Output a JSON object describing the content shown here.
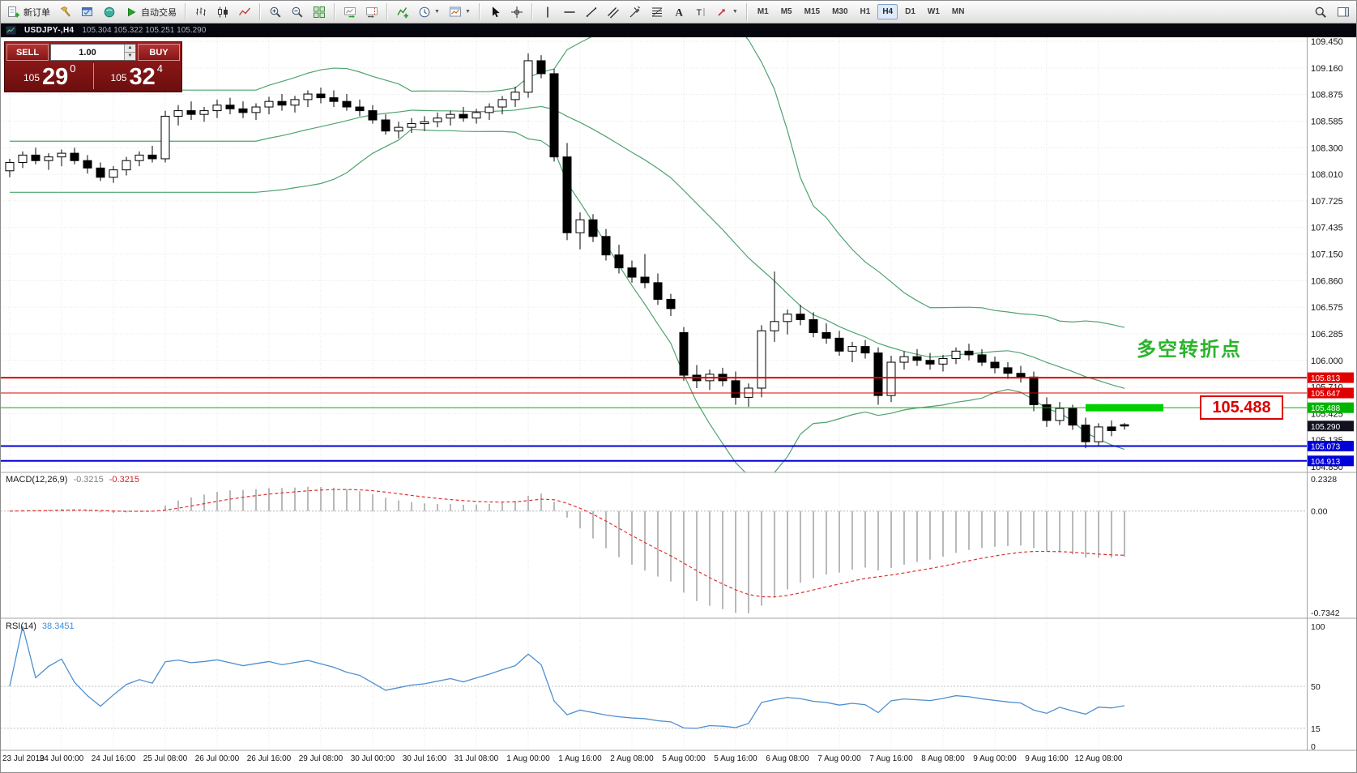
{
  "colors": {
    "up_candle": "#ffffff",
    "down_candle": "#000000",
    "candle_border": "#000000",
    "bollinger": "#4fa36f",
    "macd_histogram": "#b9b9b9",
    "macd_signal": "#e03030",
    "rsi_line": "#4f8fd0",
    "highlight_green": "#00cf00",
    "grid": "#e7e7e7"
  },
  "toolbar": {
    "groups": [
      {
        "items": [
          {
            "name": "new-order-button",
            "icon": "new-order",
            "label": "新订单"
          },
          {
            "name": "tools-button",
            "icon": "hammer"
          },
          {
            "name": "metaeditor-button",
            "icon": "editor"
          },
          {
            "name": "navigator-button",
            "icon": "orb"
          },
          {
            "name": "autotrading-button",
            "icon": "play",
            "label": "自动交易"
          }
        ]
      },
      {
        "items": [
          {
            "name": "bar-chart-mode-button",
            "icon": "bars"
          },
          {
            "name": "candle-chart-mode-button",
            "icon": "candles"
          },
          {
            "name": "line-chart-mode-button",
            "icon": "linechart"
          }
        ]
      },
      {
        "items": [
          {
            "name": "zoom-in-button",
            "icon": "zoom-in"
          },
          {
            "name": "zoom-out-button",
            "icon": "zoom-out"
          },
          {
            "name": "tile-windows-button",
            "icon": "tile"
          }
        ]
      },
      {
        "items": [
          {
            "name": "auto-scroll-button",
            "icon": "autoscroll"
          },
          {
            "name": "chart-shift-button",
            "icon": "shift"
          }
        ]
      },
      {
        "items": [
          {
            "name": "indicators-button",
            "icon": "indicators"
          },
          {
            "name": "periods-button",
            "icon": "clock",
            "caret": true
          },
          {
            "name": "templates-button",
            "icon": "template",
            "caret": true
          }
        ]
      },
      {
        "items": [
          {
            "name": "cursor-button",
            "icon": "cursor"
          },
          {
            "name": "crosshair-button",
            "icon": "crosshair"
          }
        ]
      },
      {
        "items": [
          {
            "name": "vertical-line-button",
            "icon": "vline"
          },
          {
            "name": "horizontal-line-button",
            "icon": "hline"
          },
          {
            "name": "trendline-button",
            "icon": "trendline"
          },
          {
            "name": "channel-button",
            "icon": "channel"
          },
          {
            "name": "pitchfork-button",
            "icon": "pitchfork"
          },
          {
            "name": "fibonacci-button",
            "icon": "fibonacci"
          },
          {
            "name": "text-tool-button",
            "icon": "text-tool"
          },
          {
            "name": "label-tool-button",
            "icon": "label-tool"
          },
          {
            "name": "arrows-tool-button",
            "icon": "arrows-tool",
            "caret": true
          }
        ]
      }
    ],
    "timeframes": {
      "items": [
        "M1",
        "M5",
        "M15",
        "M30",
        "H1",
        "H4",
        "D1",
        "W1",
        "MN"
      ],
      "active": "H4"
    },
    "right_icons": [
      {
        "name": "symbol-search-button",
        "icon": "search"
      },
      {
        "name": "chart-panels-button",
        "icon": "panels"
      }
    ]
  },
  "symbol_bar": {
    "symbol": "USDJPY-,H4",
    "ohlc": "105.304 105.322 105.251 105.290"
  },
  "trade_panel": {
    "sell_label": "SELL",
    "buy_label": "BUY",
    "volume": "1.00",
    "sell_price_small": "105",
    "sell_price_big": "29",
    "sell_price_sup": "0",
    "buy_price_small": "105",
    "buy_price_big": "32",
    "buy_price_sup": "4"
  },
  "chart_data": {
    "type": "candlestick",
    "symbol": "USDJPY",
    "timeframe": "H4",
    "ohlc": [
      [
        108.05,
        108.18,
        107.98,
        108.14
      ],
      [
        108.14,
        108.26,
        108.08,
        108.22
      ],
      [
        108.22,
        108.3,
        108.12,
        108.16
      ],
      [
        108.16,
        108.24,
        108.06,
        108.2
      ],
      [
        108.2,
        108.28,
        108.1,
        108.24
      ],
      [
        108.24,
        108.3,
        108.12,
        108.16
      ],
      [
        108.16,
        108.22,
        108.02,
        108.08
      ],
      [
        108.08,
        108.14,
        107.94,
        107.98
      ],
      [
        107.98,
        108.1,
        107.92,
        108.06
      ],
      [
        108.06,
        108.2,
        108.0,
        108.16
      ],
      [
        108.16,
        108.26,
        108.1,
        108.22
      ],
      [
        108.22,
        108.32,
        108.14,
        108.18
      ],
      [
        108.18,
        108.7,
        108.14,
        108.64
      ],
      [
        108.64,
        108.76,
        108.54,
        108.7
      ],
      [
        108.7,
        108.8,
        108.6,
        108.66
      ],
      [
        108.66,
        108.74,
        108.58,
        108.7
      ],
      [
        108.7,
        108.82,
        108.62,
        108.76
      ],
      [
        108.76,
        108.84,
        108.66,
        108.72
      ],
      [
        108.72,
        108.8,
        108.62,
        108.68
      ],
      [
        108.68,
        108.78,
        108.6,
        108.74
      ],
      [
        108.74,
        108.85,
        108.66,
        108.8
      ],
      [
        108.8,
        108.88,
        108.7,
        108.76
      ],
      [
        108.76,
        108.86,
        108.68,
        108.82
      ],
      [
        108.82,
        108.92,
        108.74,
        108.88
      ],
      [
        108.88,
        108.95,
        108.78,
        108.84
      ],
      [
        108.84,
        108.92,
        108.74,
        108.8
      ],
      [
        108.8,
        108.88,
        108.7,
        108.74
      ],
      [
        108.74,
        108.82,
        108.64,
        108.7
      ],
      [
        108.7,
        108.76,
        108.56,
        108.6
      ],
      [
        108.6,
        108.66,
        108.44,
        108.48
      ],
      [
        108.48,
        108.58,
        108.4,
        108.52
      ],
      [
        108.52,
        108.62,
        108.46,
        108.56
      ],
      [
        108.56,
        108.64,
        108.48,
        108.58
      ],
      [
        108.58,
        108.68,
        108.52,
        108.62
      ],
      [
        108.62,
        108.7,
        108.54,
        108.66
      ],
      [
        108.66,
        108.74,
        108.58,
        108.62
      ],
      [
        108.62,
        108.72,
        108.56,
        108.68
      ],
      [
        108.68,
        108.78,
        108.6,
        108.74
      ],
      [
        108.74,
        108.86,
        108.66,
        108.82
      ],
      [
        108.82,
        108.96,
        108.74,
        108.9
      ],
      [
        108.9,
        109.32,
        108.84,
        109.24
      ],
      [
        109.24,
        109.3,
        109.05,
        109.1
      ],
      [
        109.1,
        109.15,
        108.15,
        108.2
      ],
      [
        108.2,
        108.35,
        107.3,
        107.38
      ],
      [
        107.38,
        107.6,
        107.2,
        107.52
      ],
      [
        107.52,
        107.58,
        107.28,
        107.34
      ],
      [
        107.34,
        107.42,
        107.08,
        107.14
      ],
      [
        107.14,
        107.25,
        106.94,
        107.0
      ],
      [
        107.0,
        107.08,
        106.84,
        106.9
      ],
      [
        106.9,
        107.15,
        106.78,
        106.84
      ],
      [
        106.84,
        106.94,
        106.6,
        106.66
      ],
      [
        106.66,
        106.72,
        106.48,
        106.56
      ],
      [
        106.3,
        106.36,
        105.78,
        105.84
      ],
      [
        105.84,
        105.95,
        105.7,
        105.78
      ],
      [
        105.78,
        105.9,
        105.68,
        105.85
      ],
      [
        105.85,
        105.92,
        105.72,
        105.78
      ],
      [
        105.78,
        105.88,
        105.52,
        105.6
      ],
      [
        105.6,
        105.75,
        105.5,
        105.7
      ],
      [
        105.7,
        106.38,
        105.6,
        106.32
      ],
      [
        106.32,
        106.96,
        106.2,
        106.42
      ],
      [
        106.42,
        106.55,
        106.28,
        106.5
      ],
      [
        106.5,
        106.6,
        106.38,
        106.44
      ],
      [
        106.44,
        106.52,
        106.25,
        106.3
      ],
      [
        106.3,
        106.4,
        106.18,
        106.24
      ],
      [
        106.24,
        106.32,
        106.05,
        106.1
      ],
      [
        106.1,
        106.2,
        105.98,
        106.15
      ],
      [
        106.15,
        106.22,
        106.02,
        106.08
      ],
      [
        106.08,
        106.14,
        105.52,
        105.62
      ],
      [
        105.62,
        106.05,
        105.55,
        105.98
      ],
      [
        105.98,
        106.1,
        105.9,
        106.04
      ],
      [
        106.04,
        106.12,
        105.94,
        106.0
      ],
      [
        106.0,
        106.08,
        105.9,
        105.96
      ],
      [
        105.96,
        106.06,
        105.88,
        106.02
      ],
      [
        106.02,
        106.14,
        105.96,
        106.1
      ],
      [
        106.1,
        106.18,
        106.0,
        106.06
      ],
      [
        106.06,
        106.12,
        105.94,
        105.98
      ],
      [
        105.98,
        106.04,
        105.86,
        105.92
      ],
      [
        105.92,
        105.98,
        105.8,
        105.86
      ],
      [
        105.86,
        105.94,
        105.76,
        105.82
      ],
      [
        105.82,
        105.88,
        105.45,
        105.52
      ],
      [
        105.52,
        105.6,
        105.28,
        105.35
      ],
      [
        105.35,
        105.55,
        105.3,
        105.48
      ],
      [
        105.48,
        105.52,
        105.25,
        105.3
      ],
      [
        105.3,
        105.38,
        105.05,
        105.12
      ],
      [
        105.12,
        105.32,
        105.08,
        105.28
      ],
      [
        105.28,
        105.35,
        105.18,
        105.24
      ],
      [
        105.304,
        105.322,
        105.251,
        105.29
      ]
    ],
    "bollinger": {
      "period": 20,
      "deviation": 2
    },
    "price_axis": [
      "109.450",
      "109.160",
      "108.875",
      "108.585",
      "108.300",
      "108.010",
      "107.725",
      "107.435",
      "107.150",
      "106.860",
      "106.575",
      "106.285",
      "106.000",
      "105.710",
      "105.425",
      "105.135",
      "104.850"
    ],
    "price_axis_range": [
      109.45,
      104.85
    ],
    "time_axis": [
      {
        "i": 0,
        "label": "23 Jul 2019"
      },
      {
        "i": 4,
        "label": "24 Jul 00:00"
      },
      {
        "i": 8,
        "label": "24 Jul 16:00"
      },
      {
        "i": 12,
        "label": "25 Jul 08:00"
      },
      {
        "i": 16,
        "label": "26 Jul 00:00"
      },
      {
        "i": 20,
        "label": "26 Jul 16:00"
      },
      {
        "i": 24,
        "label": "29 Jul 08:00"
      },
      {
        "i": 28,
        "label": "30 Jul 00:00"
      },
      {
        "i": 32,
        "label": "30 Jul 16:00"
      },
      {
        "i": 36,
        "label": "31 Jul 08:00"
      },
      {
        "i": 40,
        "label": "1 Aug 00:00"
      },
      {
        "i": 44,
        "label": "1 Aug 16:00"
      },
      {
        "i": 48,
        "label": "2 Aug 08:00"
      },
      {
        "i": 52,
        "label": "5 Aug 00:00"
      },
      {
        "i": 56,
        "label": "5 Aug 16:00"
      },
      {
        "i": 60,
        "label": "6 Aug 08:00"
      },
      {
        "i": 64,
        "label": "7 Aug 00:00"
      },
      {
        "i": 68,
        "label": "7 Aug 16:00"
      },
      {
        "i": 72,
        "label": "8 Aug 08:00"
      },
      {
        "i": 76,
        "label": "9 Aug 00:00"
      },
      {
        "i": 80,
        "label": "9 Aug 16:00"
      },
      {
        "i": 84,
        "label": "12 Aug 08:00"
      }
    ],
    "hlines": [
      {
        "price": 105.813,
        "color": "#e00000",
        "width": 2,
        "tag": "105.813"
      },
      {
        "price": 105.647,
        "color": "#e00000",
        "width": 1,
        "tag": "105.647"
      },
      {
        "price": 105.488,
        "color": "#00b400",
        "width": 1,
        "tag": "105.488"
      },
      {
        "price": 105.073,
        "color": "#0000d8",
        "width": 2,
        "tag": "105.073"
      },
      {
        "price": 104.913,
        "color": "#0000d8",
        "width": 2,
        "tag": "104.913"
      }
    ],
    "current_price": {
      "value": 105.29,
      "tag": "105.290",
      "color": "#12121e"
    },
    "highlight_segment": {
      "price": 105.488,
      "from_candle": 83,
      "to_candle": 89,
      "color": "#00cf00"
    }
  },
  "macd": {
    "name": "MACD(12,26,9)",
    "value_main": "-0.3215",
    "value_signal": "-0.3215",
    "scale": [
      {
        "label": "0.2328",
        "v": 0.2328
      },
      {
        "label": "0.00",
        "v": 0
      },
      {
        "label": "-0.7342",
        "v": -0.7342
      }
    ]
  },
  "rsi": {
    "name": "RSI(14)",
    "value": "38.3451",
    "scale": [
      {
        "label": "100",
        "v": 100
      },
      {
        "label": "50",
        "v": 50
      },
      {
        "label": "15",
        "v": 15
      },
      {
        "label": "0",
        "v": 0
      }
    ],
    "levels": [
      50,
      15
    ]
  },
  "annotations": {
    "turning_point": "多空转折点",
    "price_callout": "105.488"
  }
}
